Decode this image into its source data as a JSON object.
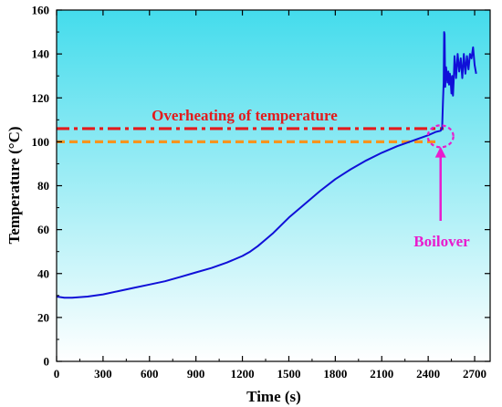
{
  "chart_data": {
    "type": "line",
    "xlabel": "Time (s)",
    "ylabel": "Temperature (°C)",
    "xlim": [
      0,
      2800
    ],
    "ylim": [
      0,
      160
    ],
    "xticks": [
      0,
      300,
      600,
      900,
      1200,
      1500,
      1800,
      2100,
      2400,
      2700
    ],
    "yticks": [
      0,
      20,
      40,
      60,
      80,
      100,
      120,
      140,
      160
    ],
    "grid": false,
    "background": "gradient cyan (top) to white (bottom)",
    "colors": {
      "series": "#1010d8",
      "overheating_line": "#e31a1c",
      "boiling_line": "#f7941d",
      "boilover": "#e81ccd"
    },
    "series": [
      {
        "x": [
          0,
          50,
          100,
          200,
          300,
          400,
          500,
          600,
          700,
          800,
          900,
          1000,
          1100,
          1200,
          1250,
          1300,
          1350,
          1400,
          1450,
          1500,
          1600,
          1700,
          1800,
          1900,
          2000,
          2100,
          2200,
          2300,
          2400,
          2450,
          2480,
          2490,
          2495,
          2500,
          2503,
          2506,
          2510,
          2515,
          2520,
          2525,
          2530,
          2535,
          2540,
          2545,
          2550,
          2555,
          2560,
          2565,
          2570,
          2580,
          2590,
          2600,
          2610,
          2620,
          2630,
          2640,
          2650,
          2660,
          2670,
          2680,
          2690,
          2700,
          2710
        ],
        "values": [
          29.5,
          29,
          29,
          29.5,
          30.5,
          32,
          33.5,
          35,
          36.5,
          38.5,
          40.5,
          42.5,
          45,
          48,
          50,
          52.5,
          55.5,
          58.5,
          62,
          65.5,
          71.5,
          77.5,
          83,
          87.5,
          91.5,
          95,
          98,
          100.5,
          103,
          104.5,
          105,
          106,
          118,
          127,
          150,
          149,
          125,
          134,
          131,
          127,
          132,
          126,
          131,
          128,
          122,
          130,
          121,
          128,
          139,
          129,
          140,
          132,
          138,
          129,
          140,
          131,
          139,
          133,
          140,
          138,
          143,
          135,
          131
        ]
      }
    ],
    "reference_lines": [
      {
        "y": 106,
        "style": "dash-dot",
        "color": "#e31a1c",
        "x_range": [
          0,
          2500
        ]
      },
      {
        "y": 100,
        "style": "dashed",
        "color": "#f7941d",
        "x_range": [
          0,
          2450
        ]
      }
    ],
    "annotations": {
      "overheating": "Overheating of temperature",
      "boilover": "Boilover"
    },
    "boilover_marker": {
      "shape": "dashed ellipse",
      "x": 2480,
      "y": 102.5,
      "arrow_from_y": 64,
      "arrow_to_y": 97
    }
  }
}
